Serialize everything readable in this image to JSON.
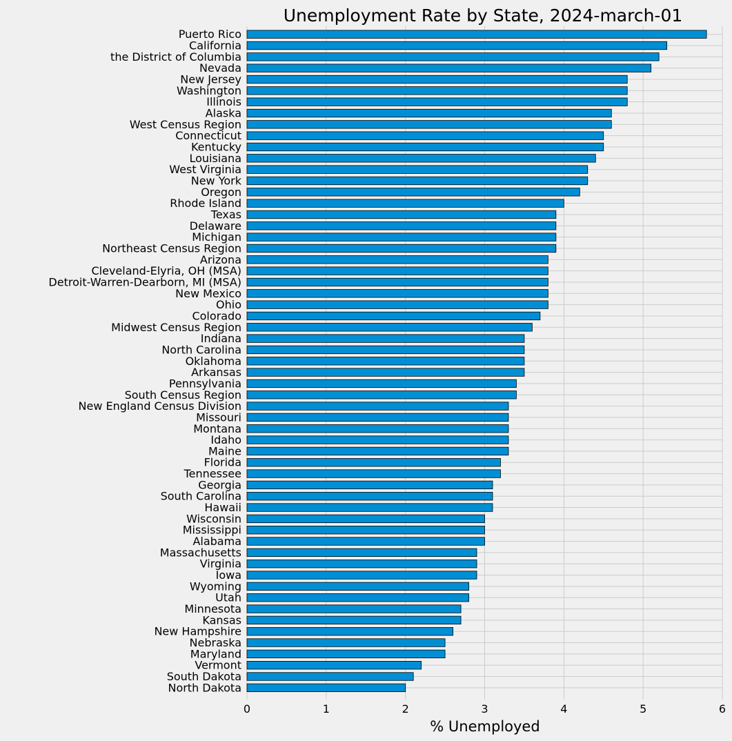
{
  "chart_data": {
    "type": "bar",
    "orientation": "horizontal",
    "title": "Unemployment Rate by State, 2024-march-01",
    "xlabel": "% Unemployed",
    "ylabel": "",
    "xlim": [
      0,
      6
    ],
    "xticks": [
      "0",
      "1",
      "2",
      "3",
      "4",
      "5",
      "6"
    ],
    "grid": true,
    "bar_color": "#008fd5",
    "background_color": "#f0f0f0",
    "grid_color": "#cbcbcb",
    "categories": [
      "Puerto Rico",
      "California",
      "the District of Columbia",
      "Nevada",
      "New Jersey",
      "Washington",
      "Illinois",
      "Alaska",
      "West Census Region",
      "Connecticut",
      "Kentucky",
      "Louisiana",
      "West Virginia",
      "New York",
      "Oregon",
      "Rhode Island",
      "Texas",
      "Delaware",
      "Michigan",
      "Northeast Census Region",
      "Arizona",
      "Cleveland-Elyria, OH (MSA)",
      "Detroit-Warren-Dearborn, MI (MSA)",
      "New Mexico",
      "Ohio",
      "Colorado",
      "Midwest Census Region",
      "Indiana",
      "North Carolina",
      "Oklahoma",
      "Arkansas",
      "Pennsylvania",
      "South Census Region",
      "New England Census Division",
      "Missouri",
      "Montana",
      "Idaho",
      "Maine",
      "Florida",
      "Tennessee",
      "Georgia",
      "South Carolina",
      "Hawaii",
      "Wisconsin",
      "Mississippi",
      "Alabama",
      "Massachusetts",
      "Virginia",
      "Iowa",
      "Wyoming",
      "Utah",
      "Minnesota",
      "Kansas",
      "New Hampshire",
      "Nebraska",
      "Maryland",
      "Vermont",
      "South Dakota",
      "North Dakota"
    ],
    "values": [
      5.8,
      5.3,
      5.2,
      5.1,
      4.8,
      4.8,
      4.8,
      4.6,
      4.6,
      4.5,
      4.5,
      4.4,
      4.3,
      4.3,
      4.2,
      4.0,
      3.9,
      3.9,
      3.9,
      3.9,
      3.8,
      3.8,
      3.8,
      3.8,
      3.8,
      3.7,
      3.6,
      3.5,
      3.5,
      3.5,
      3.5,
      3.4,
      3.4,
      3.3,
      3.3,
      3.3,
      3.3,
      3.3,
      3.2,
      3.2,
      3.1,
      3.1,
      3.1,
      3.0,
      3.0,
      3.0,
      2.9,
      2.9,
      2.9,
      2.8,
      2.8,
      2.7,
      2.7,
      2.6,
      2.5,
      2.5,
      2.2,
      2.1,
      2.0
    ]
  }
}
